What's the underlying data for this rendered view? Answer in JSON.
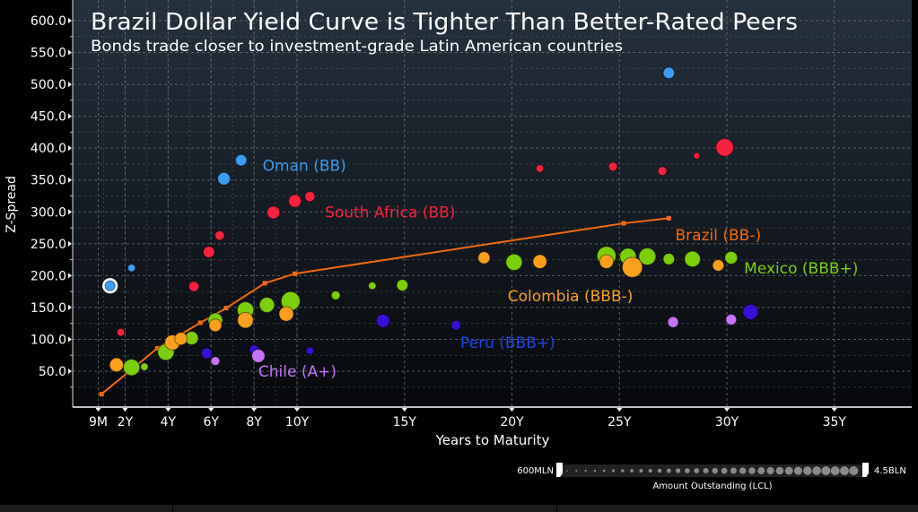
{
  "chart_data": {
    "type": "scatter",
    "title": "Brazil Dollar Yield Curve is Tighter Than Better-Rated Peers",
    "subtitle": "Bonds trade closer to investment-grade Latin American countries",
    "xlabel": "Years to Maturity",
    "ylabel": "Z-Spread",
    "xlim": [
      0,
      38.5
    ],
    "ylim": [
      0,
      610
    ],
    "grid": true,
    "x_ticks": [
      {
        "value": 0.75,
        "label": "9M"
      },
      {
        "value": 2,
        "label": "2Y"
      },
      {
        "value": 4,
        "label": "4Y"
      },
      {
        "value": 6,
        "label": "6Y"
      },
      {
        "value": 8,
        "label": "8Y"
      },
      {
        "value": 10,
        "label": "10Y"
      },
      {
        "value": 15,
        "label": "15Y"
      },
      {
        "value": 20,
        "label": "20Y"
      },
      {
        "value": 25,
        "label": "25Y"
      },
      {
        "value": 30,
        "label": "30Y"
      },
      {
        "value": 35,
        "label": "35Y"
      }
    ],
    "y_ticks": [
      {
        "value": 50,
        "label": "50.0"
      },
      {
        "value": 100,
        "label": "100.0"
      },
      {
        "value": 150,
        "label": "150.0"
      },
      {
        "value": 200,
        "label": "200.0"
      },
      {
        "value": 250,
        "label": "250.0"
      },
      {
        "value": 300,
        "label": "300.0"
      },
      {
        "value": 350,
        "label": "350.0"
      },
      {
        "value": 400,
        "label": "400.0"
      },
      {
        "value": 450,
        "label": "450.0"
      },
      {
        "value": 500,
        "label": "500.0"
      },
      {
        "value": 550,
        "label": "550.0"
      },
      {
        "value": 600,
        "label": "600.0"
      }
    ],
    "size_legend": {
      "min_label": "600MLN",
      "max_label": "4.5BLN",
      "title": "Amount Outstanding (LCL)"
    },
    "series": [
      {
        "name": "Oman (BB)",
        "color": "#3d9bf0",
        "label_pos": [
          8.4,
          373
        ],
        "points": [
          [
            1.3,
            184,
            1.6,
            "highlight"
          ],
          [
            2.3,
            212,
            1.2
          ],
          [
            6.6,
            352,
            2.0
          ],
          [
            7.4,
            381,
            1.8
          ],
          [
            27.3,
            518,
            1.8
          ]
        ]
      },
      {
        "name": "South Africa (BB)",
        "color": "#f5223f",
        "label_pos": [
          11.3,
          300
        ],
        "points": [
          [
            1.8,
            111,
            1.2
          ],
          [
            5.2,
            183,
            1.6
          ],
          [
            5.9,
            237,
            1.8
          ],
          [
            6.4,
            263,
            1.5
          ],
          [
            8.9,
            299,
            2.0
          ],
          [
            9.9,
            317,
            2.0
          ],
          [
            10.6,
            324,
            1.6
          ],
          [
            21.3,
            368,
            1.2
          ],
          [
            24.7,
            371,
            1.4
          ],
          [
            27.0,
            364,
            1.4
          ],
          [
            28.6,
            388,
            1.0
          ],
          [
            29.9,
            401,
            2.8
          ]
        ]
      },
      {
        "name": "Brazil (BB-)",
        "color": "#f26a10",
        "type": "line",
        "label_pos": [
          27.6,
          264
        ],
        "points": [
          [
            0.9,
            14
          ],
          [
            3.5,
            86
          ],
          [
            5.5,
            126
          ],
          [
            6.7,
            149
          ],
          [
            8.5,
            188
          ],
          [
            9.9,
            203
          ],
          [
            25.2,
            282
          ],
          [
            27.3,
            290
          ]
        ]
      },
      {
        "name": "Mexico (BBB+)",
        "color": "#7ccf0a",
        "label_pos": [
          30.8,
          212
        ],
        "points": [
          [
            2.3,
            56,
            2.6
          ],
          [
            2.9,
            57,
            1.2
          ],
          [
            3.9,
            80,
            2.6
          ],
          [
            5.1,
            102,
            2.1
          ],
          [
            6.2,
            130,
            2.3
          ],
          [
            7.6,
            146,
            2.6
          ],
          [
            8.6,
            154,
            2.4
          ],
          [
            9.7,
            160,
            3.0
          ],
          [
            11.8,
            169,
            1.4
          ],
          [
            13.5,
            184,
            1.2
          ],
          [
            14.9,
            185,
            1.8
          ],
          [
            20.1,
            221,
            2.6
          ],
          [
            24.4,
            231,
            3.0
          ],
          [
            25.4,
            230,
            2.6
          ],
          [
            26.3,
            230,
            2.7
          ],
          [
            27.3,
            226,
            1.8
          ],
          [
            28.4,
            226,
            2.5
          ],
          [
            30.2,
            228,
            2.0
          ]
        ]
      },
      {
        "name": "Colombia (BBB-)",
        "color": "#fba01c",
        "label_pos": [
          19.8,
          168
        ],
        "points": [
          [
            1.6,
            60,
            2.2
          ],
          [
            4.2,
            95,
            2.4
          ],
          [
            4.6,
            101,
            2.0
          ],
          [
            6.2,
            122,
            2.0
          ],
          [
            7.6,
            130,
            2.5
          ],
          [
            9.5,
            140,
            2.3
          ],
          [
            18.7,
            228,
            1.9
          ],
          [
            21.3,
            222,
            2.2
          ],
          [
            24.4,
            222,
            2.2
          ],
          [
            25.6,
            213,
            3.2
          ],
          [
            29.6,
            216,
            1.8
          ]
        ]
      },
      {
        "name": "Peru (BBB+)",
        "color": "#3610d4",
        "label_pos": [
          17.6,
          95
        ],
        "points": [
          [
            5.8,
            78,
            1.7
          ],
          [
            8.0,
            84,
            1.5
          ],
          [
            10.6,
            82,
            1.2
          ],
          [
            14.0,
            129,
            2.1
          ],
          [
            17.4,
            122,
            1.5
          ],
          [
            31.1,
            143,
            2.4
          ]
        ]
      },
      {
        "name": "Chile (A+)",
        "color": "#c474f5",
        "label_pos": [
          8.2,
          50
        ],
        "points": [
          [
            6.2,
            66,
            1.4
          ],
          [
            8.2,
            74,
            2.1
          ],
          [
            27.5,
            127,
            1.7
          ],
          [
            30.2,
            131,
            1.7
          ]
        ]
      }
    ]
  }
}
